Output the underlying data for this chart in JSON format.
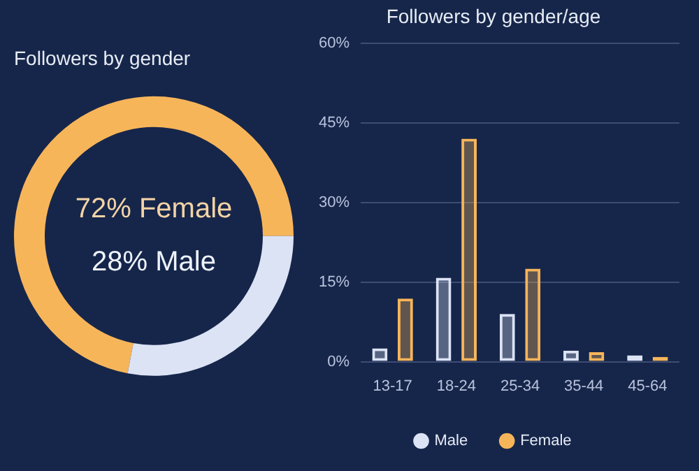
{
  "chart_data": [
    {
      "type": "donut",
      "title": "Followers by gender",
      "categories": [
        "Female",
        "Male"
      ],
      "values": [
        72,
        28
      ],
      "colors": [
        "#f7b55a",
        "#dce3f5"
      ],
      "value_labels": [
        "72%",
        "28%"
      ]
    },
    {
      "type": "bar",
      "title": "Followers by gender/age",
      "categories": [
        "13-17",
        "18-24",
        "25-34",
        "35-44",
        "45-64"
      ],
      "series": [
        {
          "name": "Male",
          "color": "#dce3f5",
          "values": [
            2.5,
            15.8,
            9,
            2.1,
            1.2
          ]
        },
        {
          "name": "Female",
          "color": "#f7b55a",
          "values": [
            11.9,
            42,
            17.5,
            1.8,
            0.9
          ]
        }
      ],
      "ylim": [
        0,
        60
      ],
      "yticks": [
        {
          "value": 0,
          "label": "0%"
        },
        {
          "value": 15,
          "label": "15%"
        },
        {
          "value": 30,
          "label": "30%"
        },
        {
          "value": 45,
          "label": "45%"
        },
        {
          "value": 60,
          "label": "60%"
        }
      ],
      "grid": "y",
      "legend": "bottom"
    }
  ]
}
